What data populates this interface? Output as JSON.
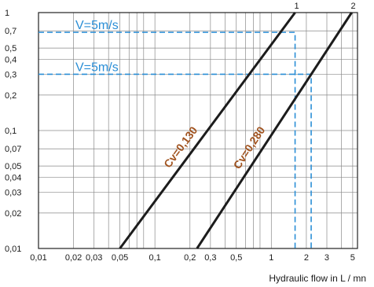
{
  "chart_data": {
    "type": "line",
    "title": "",
    "xlabel": "Hydraulic flow in L / mn",
    "ylabel": "",
    "xscale": "log",
    "yscale": "log",
    "xlim": [
      0.01,
      5.5
    ],
    "ylim": [
      0.01,
      1
    ],
    "grid": true,
    "x_ticks": [
      {
        "v": 0.01,
        "label": "0,01"
      },
      {
        "v": 0.02,
        "label": "0,02"
      },
      {
        "v": 0.03,
        "label": "0,03"
      },
      {
        "v": 0.05,
        "label": "0,05"
      },
      {
        "v": 0.1,
        "label": "0,1"
      },
      {
        "v": 0.2,
        "label": "0,2"
      },
      {
        "v": 0.3,
        "label": "0,3"
      },
      {
        "v": 0.5,
        "label": "0,5"
      },
      {
        "v": 1,
        "label": "1"
      },
      {
        "v": 2,
        "label": "2"
      },
      {
        "v": 3,
        "label": "3"
      },
      {
        "v": 5,
        "label": "5"
      }
    ],
    "x_grid": [
      0.01,
      0.02,
      0.03,
      0.04,
      0.05,
      0.06,
      0.07,
      0.08,
      0.1,
      0.2,
      0.3,
      0.4,
      0.5,
      0.6,
      0.7,
      0.8,
      1,
      2,
      3,
      4,
      5
    ],
    "y_ticks": [
      {
        "v": 1,
        "label": "1"
      },
      {
        "v": 0.7,
        "label": "0,7"
      },
      {
        "v": 0.5,
        "label": "0,5"
      },
      {
        "v": 0.4,
        "label": "0,4"
      },
      {
        "v": 0.3,
        "label": "0,3"
      },
      {
        "v": 0.2,
        "label": "0,2"
      },
      {
        "v": 0.1,
        "label": "0,1"
      },
      {
        "v": 0.07,
        "label": "0,07"
      },
      {
        "v": 0.05,
        "label": "0,05"
      },
      {
        "v": 0.04,
        "label": "0,04"
      },
      {
        "v": 0.03,
        "label": "0,03"
      },
      {
        "v": 0.02,
        "label": "0,02"
      },
      {
        "v": 0.01,
        "label": "0,01"
      }
    ],
    "series": [
      {
        "name": "1",
        "label": "Cv=0,130",
        "points": [
          [
            0.05,
            0.01
          ],
          [
            1.6,
            1.0
          ]
        ]
      },
      {
        "name": "2",
        "label": "Cv=0,280",
        "points": [
          [
            0.23,
            0.01
          ],
          [
            4.9,
            1.0
          ]
        ]
      }
    ],
    "reference_lines": [
      {
        "label": "V=5m/s",
        "y": 0.68,
        "x": 1.6
      },
      {
        "label": "V=5m/s",
        "y": 0.3,
        "x": 2.2
      }
    ],
    "colors": {
      "curve": "#1c1c1c",
      "reference": "#2a8ed6",
      "cv_label": "#a0521e"
    }
  }
}
